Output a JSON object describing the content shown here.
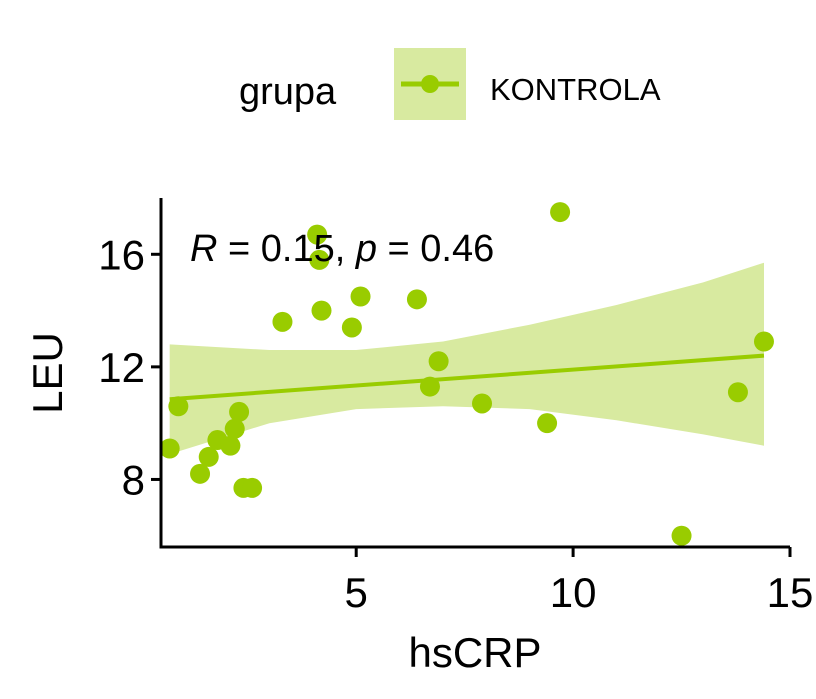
{
  "chart_data": {
    "type": "scatter",
    "xlabel": "hsCRP",
    "ylabel": "LEU",
    "xlim": [
      0.5,
      15
    ],
    "ylim": [
      5.6,
      18
    ],
    "xticks": [
      5,
      10,
      15
    ],
    "yticks": [
      8,
      12,
      16
    ],
    "grid": false,
    "legend": {
      "title": "grupa",
      "position": "top"
    },
    "series": [
      {
        "name": "KONTROLA",
        "color": "#99CC00",
        "band_color": "#D8EAA0",
        "points": [
          {
            "x": 0.7,
            "y": 9.1
          },
          {
            "x": 0.9,
            "y": 10.6
          },
          {
            "x": 1.4,
            "y": 8.2
          },
          {
            "x": 1.6,
            "y": 8.8
          },
          {
            "x": 1.8,
            "y": 9.4
          },
          {
            "x": 2.1,
            "y": 9.2
          },
          {
            "x": 2.2,
            "y": 9.8
          },
          {
            "x": 2.3,
            "y": 10.4
          },
          {
            "x": 2.4,
            "y": 7.7
          },
          {
            "x": 2.6,
            "y": 7.7
          },
          {
            "x": 3.3,
            "y": 13.6
          },
          {
            "x": 4.1,
            "y": 16.7
          },
          {
            "x": 4.15,
            "y": 15.8
          },
          {
            "x": 4.2,
            "y": 14.0
          },
          {
            "x": 4.9,
            "y": 13.4
          },
          {
            "x": 5.1,
            "y": 14.5
          },
          {
            "x": 6.4,
            "y": 14.4
          },
          {
            "x": 6.7,
            "y": 11.3
          },
          {
            "x": 6.9,
            "y": 12.2
          },
          {
            "x": 7.9,
            "y": 10.7
          },
          {
            "x": 9.4,
            "y": 10.0
          },
          {
            "x": 9.7,
            "y": 17.5
          },
          {
            "x": 12.5,
            "y": 6.0
          },
          {
            "x": 13.8,
            "y": 11.1
          },
          {
            "x": 14.4,
            "y": 12.9
          }
        ],
        "fit": {
          "x": [
            0.7,
            14.4
          ],
          "y": [
            10.85,
            12.4
          ]
        },
        "ci_band": {
          "x": [
            0.7,
            3,
            5,
            7,
            9,
            11,
            13,
            14.4
          ],
          "upper": [
            12.8,
            12.6,
            12.6,
            12.9,
            13.5,
            14.2,
            15.0,
            15.7
          ],
          "lower": [
            8.9,
            10.0,
            10.5,
            10.6,
            10.5,
            10.1,
            9.6,
            9.2
          ]
        }
      }
    ],
    "annotation": {
      "r_label": "R",
      "r_text": " = 0.15, ",
      "p_label": "p",
      "p_text": " = 0.46"
    }
  }
}
